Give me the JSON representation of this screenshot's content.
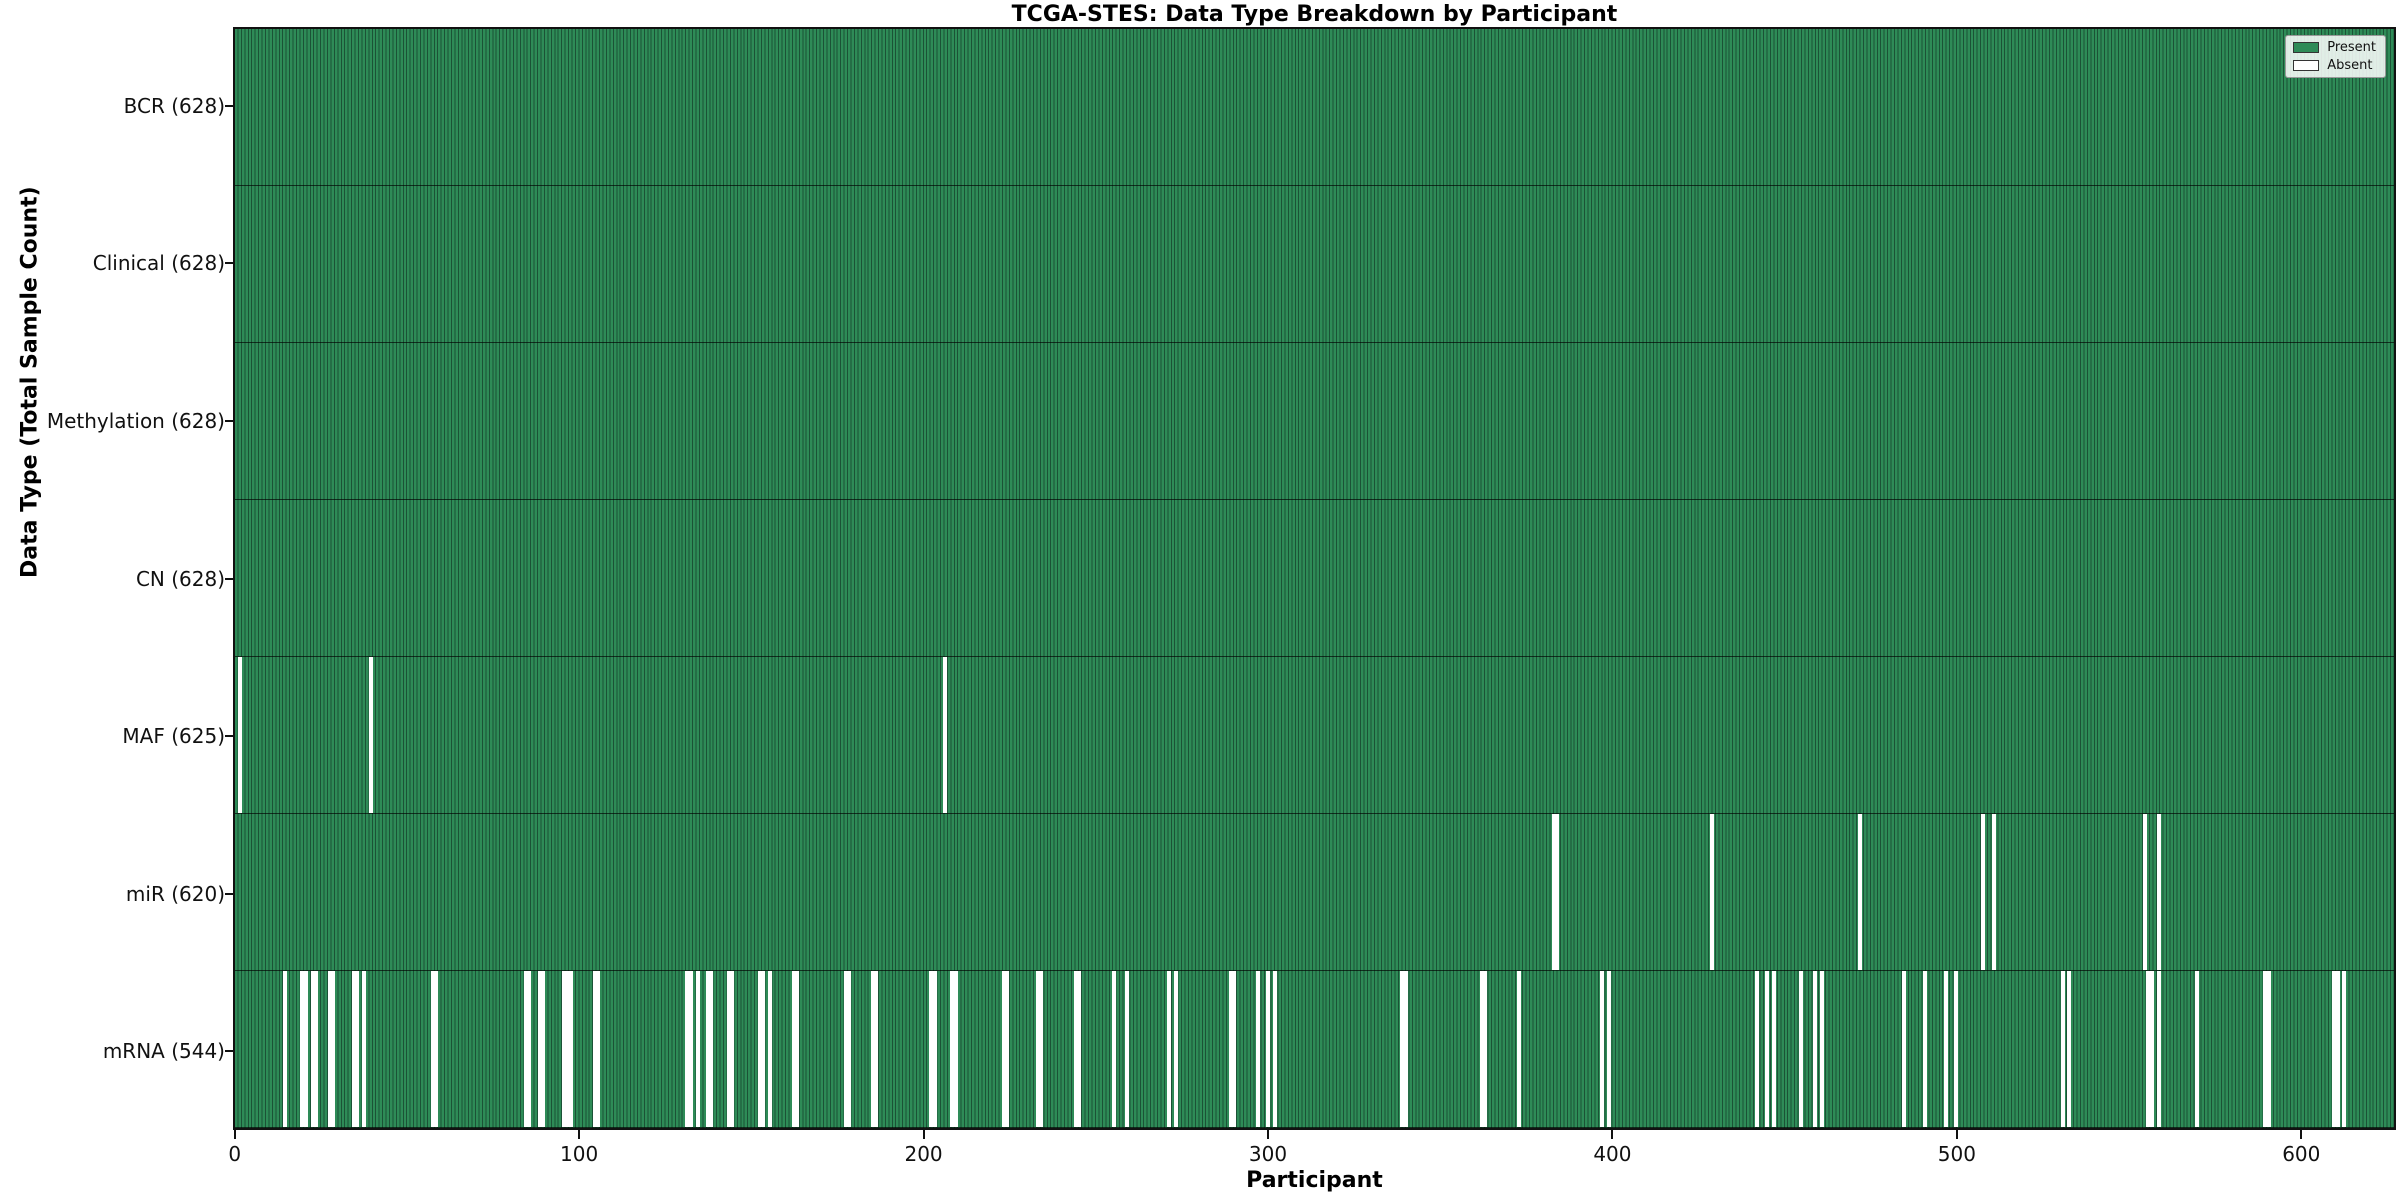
{
  "chart_data": {
    "type": "heatmap",
    "title": "TCGA-STES: Data Type Breakdown by Participant",
    "xlabel": "Participant",
    "ylabel": "Data Type (Total Sample Count)",
    "n_participants": 628,
    "xlim": [
      -0.5,
      627.5
    ],
    "x_ticks": [
      0,
      100,
      200,
      300,
      400,
      500,
      600
    ],
    "legend": [
      {
        "label": "Present",
        "color": "#2e8b57"
      },
      {
        "label": "Absent",
        "color": "#ffffff"
      }
    ],
    "colors": {
      "present": "#2e8b57",
      "present_edge": "#1b5236",
      "absent": "#ffffff",
      "row_divider": "rgba(0,0,0,0.65)",
      "spine": "#111111"
    },
    "rows": [
      {
        "label": "BCR (628)",
        "name": "BCR",
        "count": 628,
        "absent_count": 0,
        "absent_participants": []
      },
      {
        "label": "Clinical (628)",
        "name": "Clinical",
        "count": 628,
        "absent_count": 0,
        "absent_participants": []
      },
      {
        "label": "Methylation (628)",
        "name": "Methylation",
        "count": 628,
        "absent_count": 0,
        "absent_participants": []
      },
      {
        "label": "CN (628)",
        "name": "CN",
        "count": 628,
        "absent_count": 0,
        "absent_participants": []
      },
      {
        "label": "MAF (625)",
        "name": "MAF",
        "count": 625,
        "absent_count": 3,
        "absent_participants": [
          1,
          39,
          206
        ]
      },
      {
        "label": "miR (620)",
        "name": "miR",
        "count": 620,
        "absent_count": 8,
        "absent_participants": [
          383,
          384,
          429,
          472,
          508,
          511,
          555,
          559
        ]
      },
      {
        "label": "mRNA (544)",
        "name": "mRNA",
        "count": 544,
        "absent_count": 84,
        "absent_participants": [
          14,
          19,
          20,
          22,
          23,
          27,
          28,
          34,
          35,
          37,
          57,
          58,
          84,
          85,
          88,
          89,
          95,
          96,
          97,
          104,
          105,
          131,
          132,
          134,
          137,
          138,
          143,
          144,
          152,
          153,
          155,
          162,
          163,
          177,
          178,
          185,
          186,
          202,
          203,
          208,
          209,
          223,
          224,
          233,
          234,
          244,
          245,
          255,
          259,
          271,
          273,
          289,
          290,
          297,
          300,
          302,
          339,
          340,
          362,
          363,
          373,
          397,
          399,
          442,
          445,
          447,
          455,
          459,
          461,
          485,
          491,
          497,
          500,
          531,
          533,
          556,
          557,
          559,
          570,
          590,
          591,
          610,
          611,
          613
        ]
      }
    ]
  }
}
